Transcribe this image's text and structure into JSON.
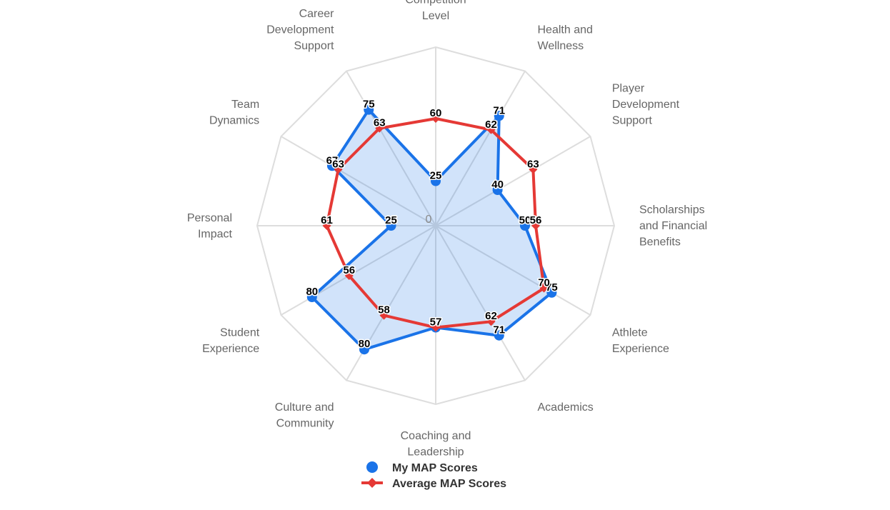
{
  "chart_data": {
    "type": "radar",
    "axes": [
      "Competition Level",
      "Health and Wellness",
      "Player Development Support",
      "Scholarships and Financial Benefits",
      "Athlete Experience",
      "Academics",
      "Coaching and Leadership",
      "Culture and Community",
      "Student Experience",
      "Personal Impact",
      "Team Dynamics",
      "Career Development Support"
    ],
    "axis_label_lines": [
      [
        "Competition",
        "Level"
      ],
      [
        "Health and",
        "Wellness"
      ],
      [
        "Player",
        "Development",
        "Support"
      ],
      [
        "Scholarships",
        "and Financial",
        "Benefits"
      ],
      [
        "Athlete",
        "Experience"
      ],
      [
        "Academics"
      ],
      [
        "Coaching and",
        "Leadership"
      ],
      [
        "Culture and",
        "Community"
      ],
      [
        "Student",
        "Experience"
      ],
      [
        "Personal",
        "Impact"
      ],
      [
        "Team",
        "Dynamics"
      ],
      [
        "Career",
        "Development",
        "Support"
      ]
    ],
    "series": [
      {
        "name": "My MAP Scores",
        "color": "#1a73e8",
        "fill": "rgba(26,115,232,0.2)",
        "marker": "circle",
        "values": [
          25,
          71,
          40,
          50,
          75,
          71,
          57,
          80,
          80,
          25,
          67,
          75
        ]
      },
      {
        "name": "Average MAP Scores",
        "color": "#e53935",
        "marker": "diamond",
        "values": [
          60,
          62,
          63,
          56,
          70,
          62,
          57,
          58,
          56,
          61,
          63,
          63
        ]
      }
    ],
    "rlim": [
      0,
      100
    ],
    "center_tick": "0",
    "grid": true,
    "legend_position": "bottom"
  }
}
